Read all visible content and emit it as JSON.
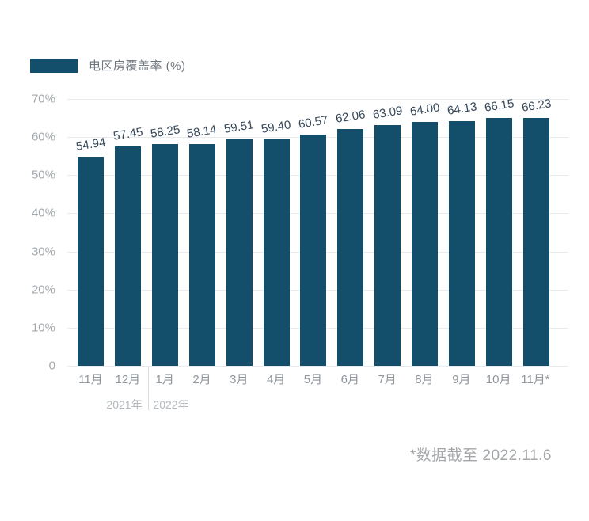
{
  "chart_data": {
    "type": "bar",
    "title": "",
    "legend": "电区房覆盖率 (%)",
    "legend_position": "top-left",
    "categories": [
      "11月",
      "12月",
      "1月",
      "2月",
      "3月",
      "4月",
      "5月",
      "6月",
      "7月",
      "8月",
      "9月",
      "10月",
      "11月*"
    ],
    "values": [
      54.94,
      57.45,
      58.25,
      58.14,
      59.51,
      59.4,
      60.57,
      62.06,
      63.09,
      64.0,
      64.13,
      66.15,
      66.23
    ],
    "value_labels": [
      "54.94",
      "57.45",
      "58.25",
      "58.14",
      "59.51",
      "59.40",
      "60.57",
      "62.06",
      "63.09",
      "64.00",
      "64.13",
      "66.15",
      "66.23"
    ],
    "y_ticks": [
      "70%",
      "60%",
      "50%",
      "40%",
      "30%",
      "20%",
      "10%",
      "0"
    ],
    "ylim": [
      0,
      70
    ],
    "grid": "horizontal",
    "year_groups": [
      {
        "label": "2021年",
        "months": [
          "11月",
          "12月"
        ]
      },
      {
        "label": "2022年",
        "months": [
          "1月",
          "2月",
          "3月",
          "4月",
          "5月",
          "6月",
          "7月",
          "8月",
          "9月",
          "10月",
          "11月*"
        ]
      }
    ],
    "footnote": "*数据截至 2022.11.6",
    "colors": {
      "bar": "#134F6B",
      "value_label": "#36485A",
      "axis_label": "#9BA1A7",
      "year_label": "#B4B9BD",
      "gridline": "#E9EAEB",
      "footnote": "#A4A7A9"
    }
  }
}
